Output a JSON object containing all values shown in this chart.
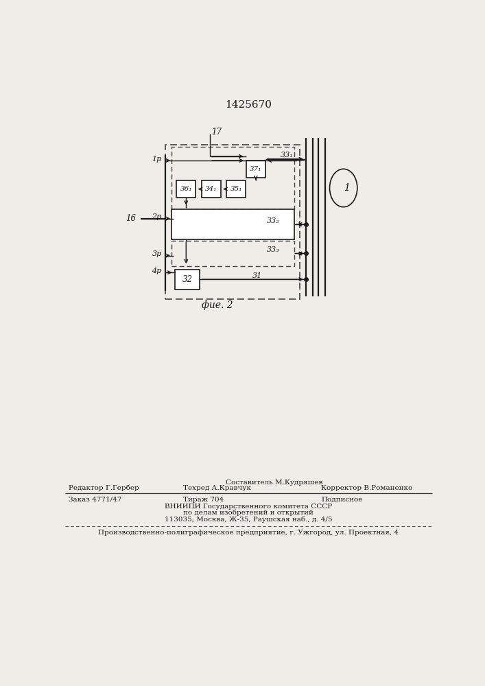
{
  "title": "1425670",
  "fig_label": "фие. 2",
  "background_color": "#f0ede8",
  "line_color": "#1a1a1a",
  "box_fill": "#ffffff",
  "footer1": "Составитель М.Кудряшев",
  "footer2a": "Редактор Г.Гербер",
  "footer2b": "Техред А.Кравчук",
  "footer2c": "Корректор В.Романенко",
  "footer3a": "Заказ 4771/47",
  "footer3b": "Тираж 704",
  "footer3c": "Подписное",
  "footer4": "ВНИИПИ Государственного комитета СССР",
  "footer5": "по делам изобретений и открытий",
  "footer6": "113035, Москва, Ж-35, Раушская наб., д. 4/5",
  "footer7": "Производственно-полиграфическое предприятие, г. Ужгород, ул. Проектная, 4"
}
